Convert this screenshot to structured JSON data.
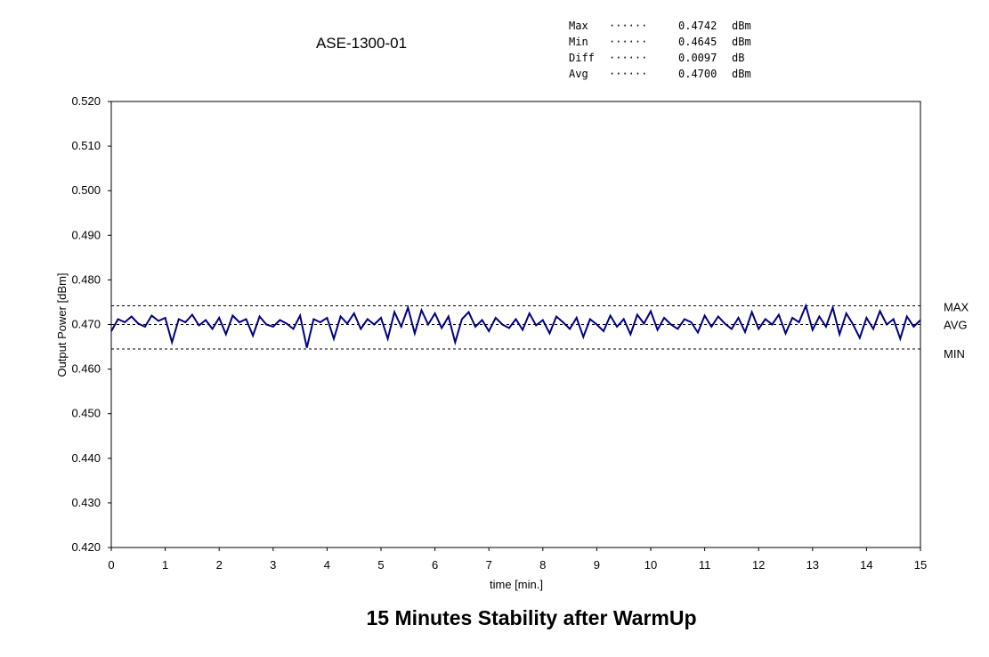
{
  "chart_data": {
    "type": "line",
    "title": "ASE-1300-01",
    "caption": "15 Minutes Stability after WarmUp",
    "xlabel": "time [min.]",
    "ylabel": "Output Power [dBm]",
    "xlim": [
      0,
      15
    ],
    "ylim": [
      0.42,
      0.52
    ],
    "x_ticks": [
      "0",
      "1",
      "2",
      "3",
      "4",
      "5",
      "6",
      "7",
      "8",
      "9",
      "10",
      "11",
      "12",
      "13",
      "14",
      "15"
    ],
    "y_ticks": [
      "0.420",
      "0.430",
      "0.440",
      "0.450",
      "0.460",
      "0.470",
      "0.480",
      "0.490",
      "0.500",
      "0.510",
      "0.520"
    ],
    "stats": [
      {
        "label": "Max",
        "dots": "······",
        "value": "0.4742",
        "unit": "dBm"
      },
      {
        "label": "Min",
        "dots": "······",
        "value": "0.4645",
        "unit": "dBm"
      },
      {
        "label": "Diff",
        "dots": "······",
        "value": "0.0097",
        "unit": "dB"
      },
      {
        "label": "Avg",
        "dots": "······",
        "value": "0.4700",
        "unit": "dBm"
      }
    ],
    "reference_lines": [
      {
        "label": "MAX",
        "value": 0.4742
      },
      {
        "label": "AVG",
        "value": 0.47
      },
      {
        "label": "MIN",
        "value": 0.4645
      }
    ],
    "series": [
      {
        "name": "Output Power",
        "color": "#000080",
        "x_start": 0,
        "x_end": 15,
        "values": [
          0.4685,
          0.4712,
          0.4705,
          0.4718,
          0.4702,
          0.4695,
          0.472,
          0.4708,
          0.4715,
          0.466,
          0.4712,
          0.4705,
          0.4722,
          0.4698,
          0.471,
          0.469,
          0.4715,
          0.4678,
          0.472,
          0.4705,
          0.4712,
          0.4675,
          0.4718,
          0.47,
          0.4695,
          0.471,
          0.4702,
          0.469,
          0.472,
          0.4648,
          0.4712,
          0.4705,
          0.4715,
          0.4668,
          0.4718,
          0.4702,
          0.4725,
          0.469,
          0.4712,
          0.47,
          0.4715,
          0.4668,
          0.4728,
          0.4695,
          0.4738,
          0.468,
          0.4732,
          0.47,
          0.4725,
          0.4692,
          0.4718,
          0.466,
          0.4712,
          0.4728,
          0.4695,
          0.471,
          0.4685,
          0.4715,
          0.47,
          0.4692,
          0.4712,
          0.4688,
          0.4725,
          0.4698,
          0.471,
          0.468,
          0.4718,
          0.4705,
          0.469,
          0.4715,
          0.4672,
          0.4712,
          0.47,
          0.4685,
          0.472,
          0.4695,
          0.4712,
          0.4678,
          0.4722,
          0.4702,
          0.473,
          0.4688,
          0.4715,
          0.47,
          0.469,
          0.4712,
          0.4705,
          0.4682,
          0.472,
          0.4695,
          0.4718,
          0.4702,
          0.469,
          0.4715,
          0.4683,
          0.4728,
          0.469,
          0.4712,
          0.47,
          0.4722,
          0.468,
          0.4715,
          0.4705,
          0.4742,
          0.4688,
          0.4718,
          0.4695,
          0.4738,
          0.4678,
          0.4725,
          0.47,
          0.467,
          0.4715,
          0.469,
          0.473,
          0.47,
          0.4712,
          0.4668,
          0.4718,
          0.4695,
          0.471
        ]
      }
    ]
  }
}
